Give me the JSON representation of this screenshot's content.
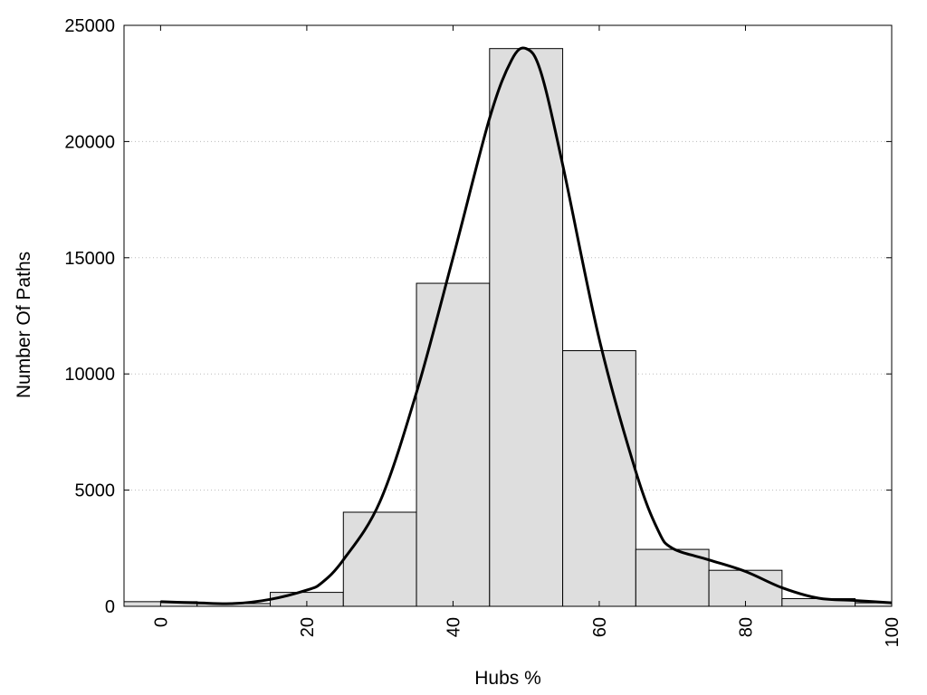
{
  "chart_data": {
    "type": "bar",
    "title": "",
    "xlabel": "Hubs %",
    "ylabel": "Number Of Paths",
    "xlim": [
      -5,
      100
    ],
    "ylim": [
      0,
      25000
    ],
    "x_ticks": [
      0,
      20,
      40,
      60,
      80,
      100
    ],
    "y_ticks": [
      0,
      5000,
      10000,
      15000,
      20000,
      25000
    ],
    "grid": "horizontal dotted",
    "bar_color": "#dedede",
    "bar_edge_color": "#000000",
    "curve_color": "#000000",
    "bins": [
      {
        "x0": -5,
        "x1": 5,
        "value": 200
      },
      {
        "x0": 5,
        "x1": 15,
        "value": 120
      },
      {
        "x0": 15,
        "x1": 25,
        "value": 600
      },
      {
        "x0": 25,
        "x1": 35,
        "value": 4050
      },
      {
        "x0": 35,
        "x1": 45,
        "value": 13900
      },
      {
        "x0": 45,
        "x1": 55,
        "value": 24000
      },
      {
        "x0": 55,
        "x1": 65,
        "value": 11000
      },
      {
        "x0": 65,
        "x1": 75,
        "value": 2450
      },
      {
        "x0": 75,
        "x1": 85,
        "value": 1550
      },
      {
        "x0": 85,
        "x1": 95,
        "value": 330
      },
      {
        "x0": 95,
        "x1": 100,
        "value": 150
      }
    ],
    "curve": {
      "x": [
        0,
        5,
        10,
        15,
        20,
        22,
        25,
        30,
        35,
        40,
        45,
        48,
        50,
        52,
        55,
        60,
        65,
        68,
        70,
        75,
        80,
        85,
        90,
        95,
        100
      ],
      "y": [
        200,
        150,
        120,
        300,
        700,
        1000,
        2000,
        4500,
        9200,
        15000,
        21000,
        23500,
        24000,
        23000,
        19000,
        11500,
        5800,
        3300,
        2500,
        2000,
        1500,
        800,
        350,
        250,
        150
      ]
    }
  }
}
